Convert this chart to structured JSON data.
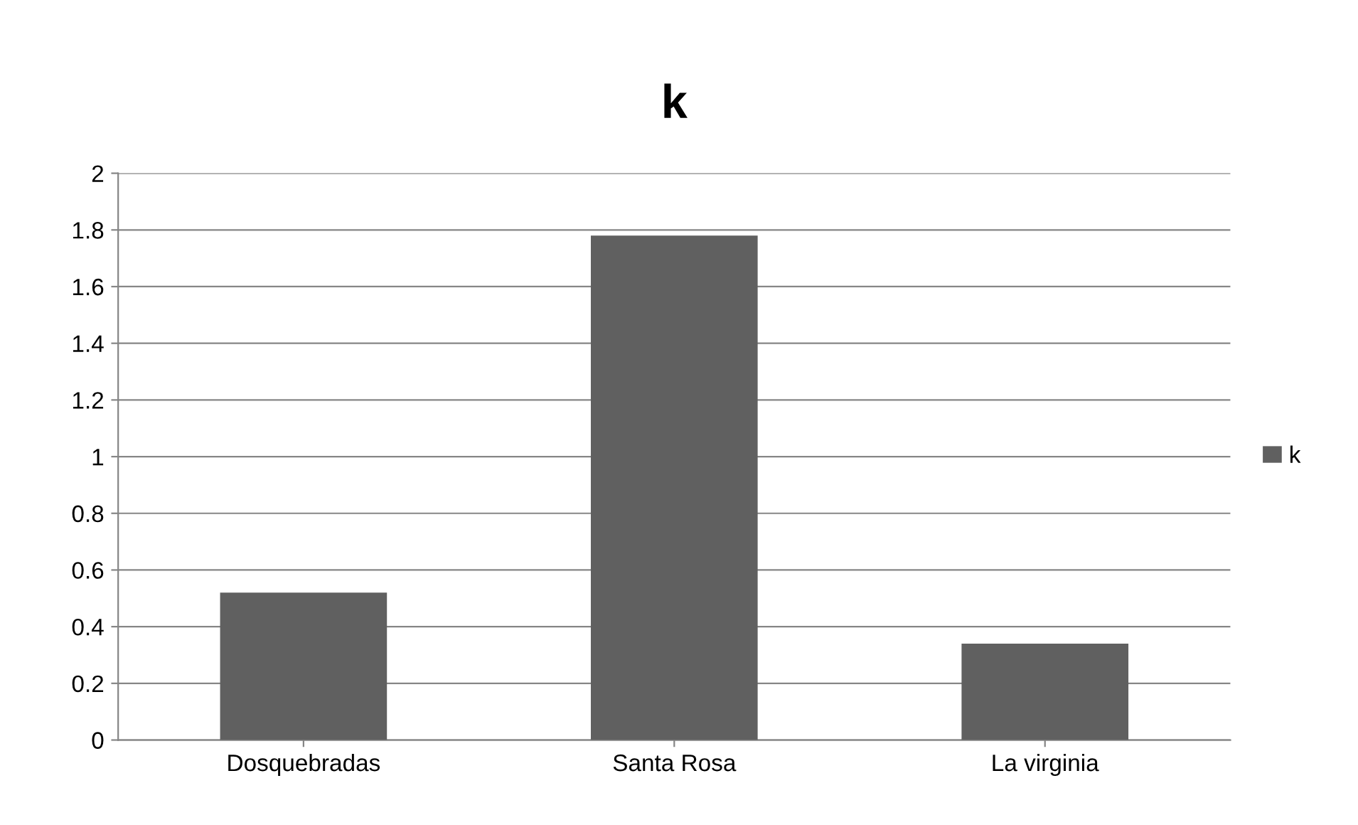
{
  "chart_data": {
    "type": "bar",
    "title": "k",
    "categories": [
      "Dosquebradas",
      "Santa Rosa",
      "La virginia"
    ],
    "series": [
      {
        "name": "k",
        "color": "#606060",
        "values": [
          0.52,
          1.78,
          0.34
        ]
      }
    ],
    "ylim": [
      0,
      2
    ],
    "yticks": [
      0,
      {
        "value": 0.2,
        "label": "0.2"
      },
      {
        "value": 0.4,
        "label": "0.4"
      },
      {
        "value": 0.6,
        "label": "0.6"
      },
      {
        "value": 0.8,
        "label": "0.8"
      },
      1,
      {
        "value": 1.2,
        "label": "1.2"
      },
      {
        "value": 1.4,
        "label": "1.4"
      },
      {
        "value": 1.6,
        "label": "1.6"
      },
      {
        "value": 1.8,
        "label": "1.8"
      },
      2
    ],
    "grid": "y",
    "legend": "right"
  }
}
